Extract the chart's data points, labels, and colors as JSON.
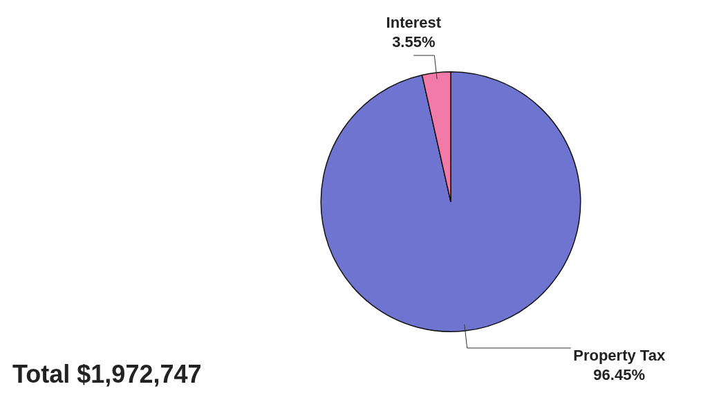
{
  "chart_data": {
    "type": "pie",
    "categories": [
      "Property Tax",
      "Interest"
    ],
    "values": [
      96.45,
      3.55
    ],
    "colors": [
      "#6f74d0",
      "#f27aa8"
    ],
    "value_labels": [
      "96.45%",
      "3.55%"
    ],
    "legend": false,
    "annotations": [
      "Total $1,972,747"
    ]
  }
}
